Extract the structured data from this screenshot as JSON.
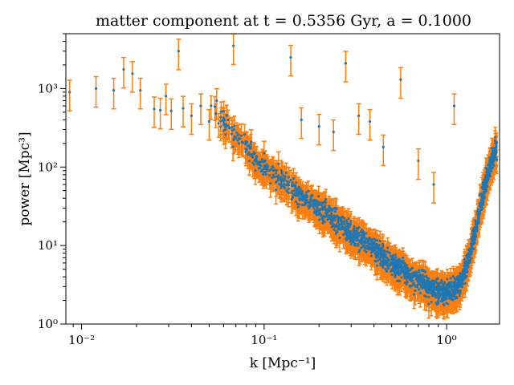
{
  "chart_data": {
    "type": "scatter",
    "title_text": "matter component at t = 0.5356 Gyr, a = 0.1000",
    "xlabel": "k [Mpc⁻¹]",
    "ylabel": "power [Mpc³]",
    "x_scale": "log",
    "y_scale": "log",
    "xlim": [
      0.0082,
      1.95
    ],
    "ylim": [
      1,
      5000
    ],
    "x_ticks": [
      {
        "value": 0.01,
        "label": "10⁻²"
      },
      {
        "value": 0.1,
        "label": "10⁻¹"
      },
      {
        "value": 1,
        "label": "10⁰"
      }
    ],
    "y_ticks": [
      {
        "value": 1,
        "label": "10⁰"
      },
      {
        "value": 10,
        "label": "10¹"
      },
      {
        "value": 100,
        "label": "10²"
      },
      {
        "value": 1000,
        "label": "10³"
      }
    ],
    "grid": false,
    "legend": "none",
    "colors": {
      "points": "#1f77b4",
      "errorbars": "#ff7f0e"
    },
    "points": [
      {
        "k": 0.0086,
        "p": 900
      },
      {
        "k": 0.012,
        "p": 1000
      },
      {
        "k": 0.015,
        "p": 950
      },
      {
        "k": 0.017,
        "p": 1750
      },
      {
        "k": 0.019,
        "p": 1550
      },
      {
        "k": 0.021,
        "p": 950
      },
      {
        "k": 0.025,
        "p": 550
      },
      {
        "k": 0.027,
        "p": 530
      },
      {
        "k": 0.029,
        "p": 800
      },
      {
        "k": 0.031,
        "p": 520
      },
      {
        "k": 0.034,
        "p": 3000
      },
      {
        "k": 0.036,
        "p": 560
      },
      {
        "k": 0.04,
        "p": 450
      },
      {
        "k": 0.045,
        "p": 600
      },
      {
        "k": 0.05,
        "p": 380
      },
      {
        "k": 0.055,
        "p": 700
      },
      {
        "k": 0.06,
        "p": 400
      },
      {
        "k": 0.068,
        "p": 3500
      },
      {
        "k": 0.075,
        "p": 250
      },
      {
        "k": 0.085,
        "p": 210
      },
      {
        "k": 0.1,
        "p": 150
      },
      {
        "k": 0.12,
        "p": 110
      },
      {
        "k": 0.14,
        "p": 2500
      },
      {
        "k": 0.16,
        "p": 400
      },
      {
        "k": 0.2,
        "p": 330
      },
      {
        "k": 0.24,
        "p": 280
      },
      {
        "k": 0.28,
        "p": 2100
      },
      {
        "k": 0.33,
        "p": 450
      },
      {
        "k": 0.38,
        "p": 380
      },
      {
        "k": 0.45,
        "p": 180
      },
      {
        "k": 0.56,
        "p": 1300
      },
      {
        "k": 0.7,
        "p": 120
      },
      {
        "k": 0.85,
        "p": 60
      },
      {
        "k": 1.1,
        "p": 600
      }
    ],
    "bulk_band": [
      {
        "k": 0.05,
        "p": 650
      },
      {
        "k": 0.08,
        "p": 170
      },
      {
        "k": 0.1,
        "p": 100
      },
      {
        "k": 0.15,
        "p": 50
      },
      {
        "k": 0.2,
        "p": 30
      },
      {
        "k": 0.3,
        "p": 15
      },
      {
        "k": 0.4,
        "p": 9
      },
      {
        "k": 0.5,
        "p": 6
      },
      {
        "k": 0.6,
        "p": 4.5
      },
      {
        "k": 0.7,
        "p": 3.6
      },
      {
        "k": 0.8,
        "p": 3
      },
      {
        "k": 0.9,
        "p": 2.6
      },
      {
        "k": 1.0,
        "p": 2.5
      },
      {
        "k": 1.1,
        "p": 2.8
      },
      {
        "k": 1.2,
        "p": 3.6
      },
      {
        "k": 1.3,
        "p": 6
      },
      {
        "k": 1.4,
        "p": 12
      },
      {
        "k": 1.5,
        "p": 25
      },
      {
        "k": 1.6,
        "p": 50
      },
      {
        "k": 1.7,
        "p": 90
      },
      {
        "k": 1.8,
        "p": 140
      },
      {
        "k": 1.88,
        "p": 180
      }
    ],
    "bulk_scatter": 0.11,
    "errorbar_fraction": 0.42
  }
}
